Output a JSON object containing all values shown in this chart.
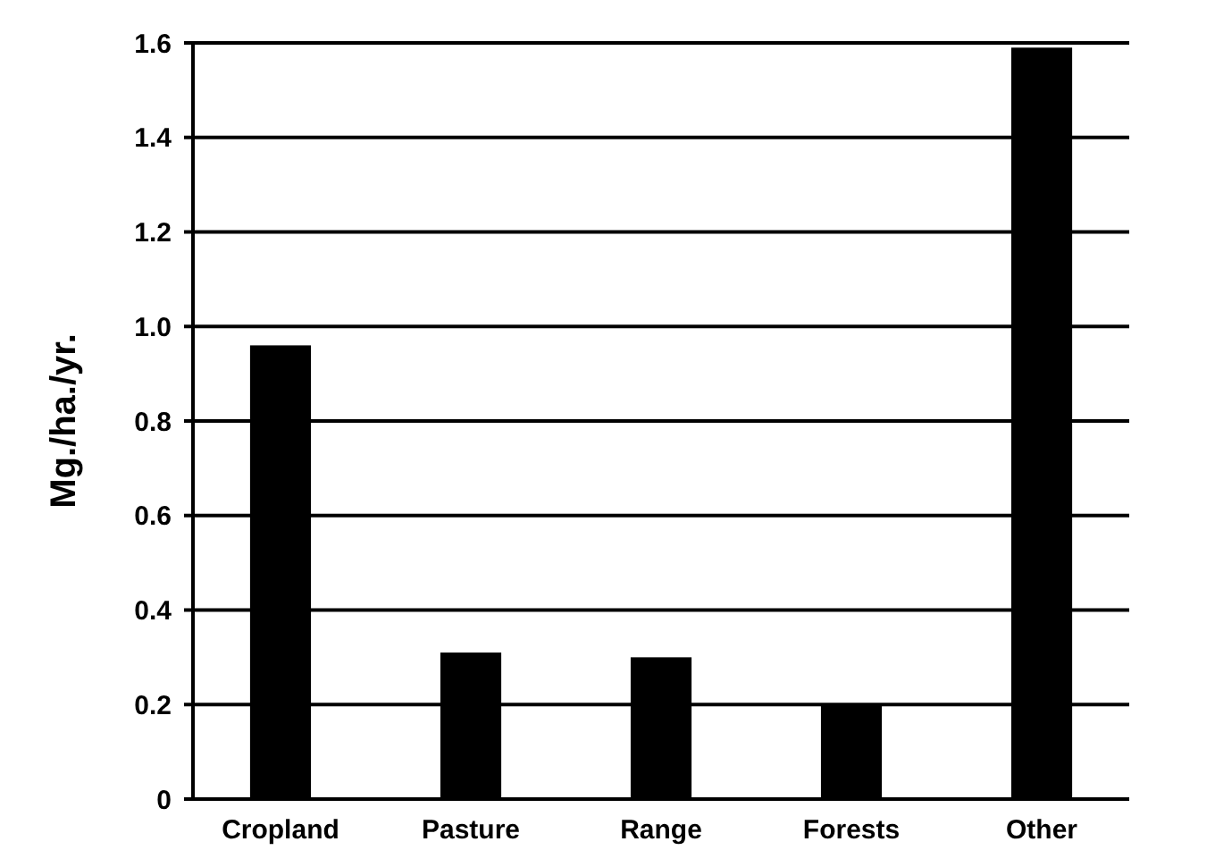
{
  "chart_data": {
    "type": "bar",
    "ylabel": "Mg./ha./yr.",
    "categories": [
      "Cropland",
      "Pasture",
      "Range",
      "Forests",
      "Other"
    ],
    "values": [
      0.96,
      0.31,
      0.3,
      0.2,
      1.59
    ],
    "color": "#000000",
    "ylim": [
      0,
      1.6
    ],
    "yticks": [
      0,
      0.2,
      0.4,
      0.6,
      0.8,
      {
        "value": 1,
        "label": "1.0"
      },
      1.2,
      {
        "value": 1.4,
        "label": "1.4"
      },
      1.6
    ],
    "grid": "y"
  }
}
